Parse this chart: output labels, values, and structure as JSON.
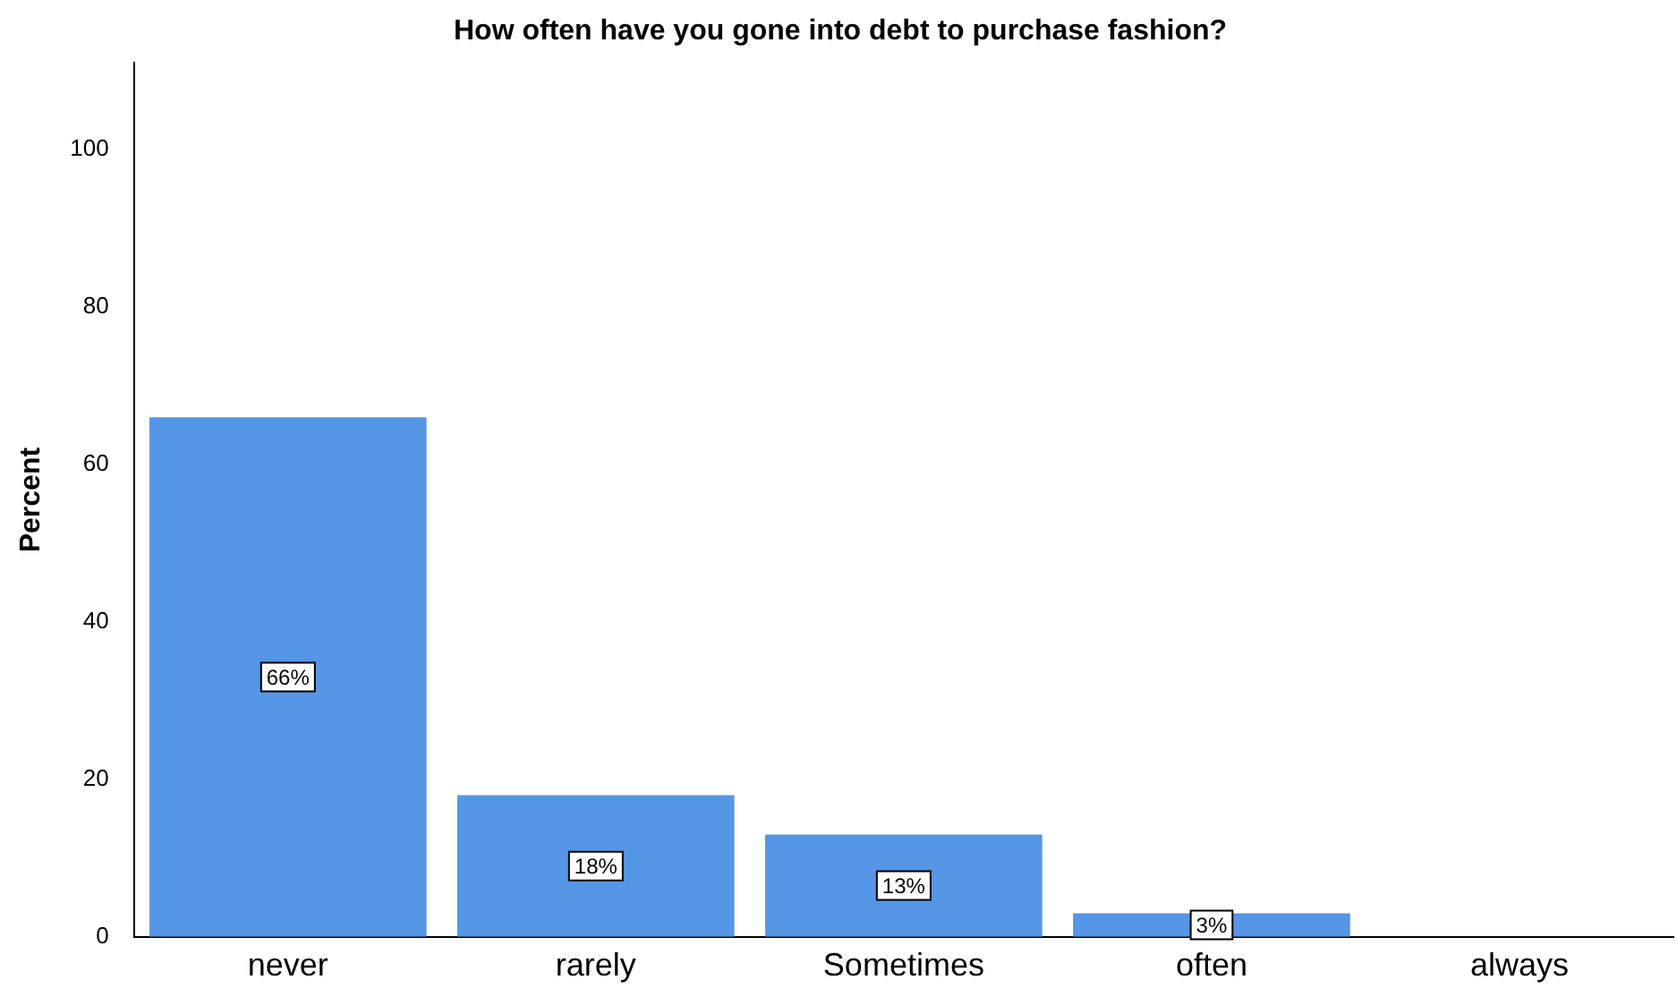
{
  "chart_data": {
    "type": "bar",
    "title": "How often have you gone into debt to purchase fashion?",
    "ylabel": "Percent",
    "categories": [
      "never",
      "rarely",
      "Sometimes",
      "often",
      "always"
    ],
    "values": [
      66,
      18,
      13,
      3,
      null
    ],
    "value_labels": [
      "66%",
      "18%",
      "13%",
      "3%",
      null
    ],
    "color": "#5596e6",
    "ylim": [
      0,
      111
    ],
    "yticks": [
      0,
      20,
      40,
      60,
      80,
      100
    ],
    "grid": false,
    "legend": false
  }
}
